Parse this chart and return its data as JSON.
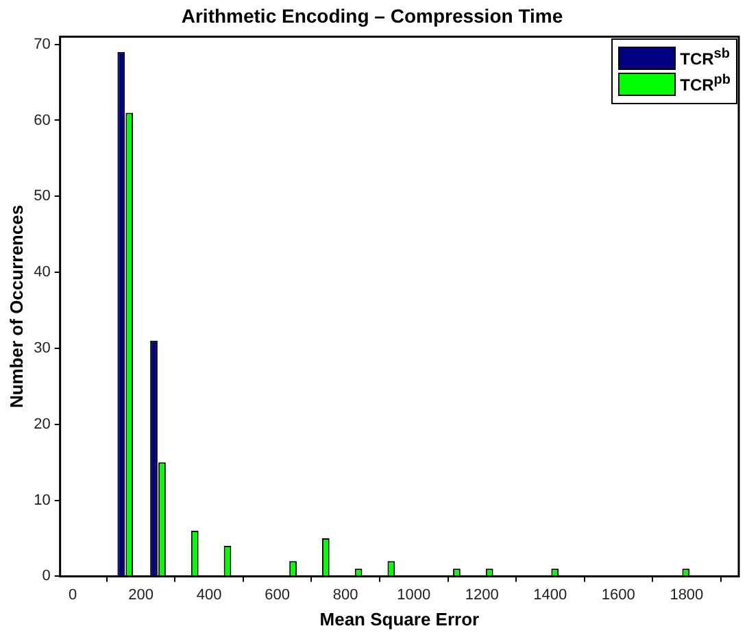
{
  "chart_data": {
    "type": "bar",
    "title": "Arithmetic Encoding – Compression Time",
    "xlabel": "Mean Square Error",
    "ylabel": "Number of Occurrences",
    "x": [
      154,
      250,
      346,
      442,
      538,
      634,
      730,
      826,
      922,
      1018,
      1114,
      1210,
      1306,
      1402,
      1498,
      1594,
      1690,
      1786,
      1882
    ],
    "series": [
      {
        "name": "TCR$^{sb}$",
        "color": "#000080",
        "values": [
          69,
          31,
          0,
          0,
          0,
          0,
          0,
          0,
          0,
          0,
          0,
          0,
          0,
          0,
          0,
          0,
          0,
          0,
          0
        ]
      },
      {
        "name": "TCR$^{pb}$",
        "color": "#00ff00",
        "values": [
          61,
          15,
          6,
          4,
          0,
          2,
          5,
          1,
          2,
          0,
          1,
          1,
          0,
          1,
          0,
          0,
          0,
          1,
          0
        ]
      }
    ],
    "xlim": [
      -37,
      1953
    ],
    "xticks": [
      0,
      200,
      400,
      600,
      800,
      1000,
      1200,
      1400,
      1600,
      1800
    ],
    "ylim": [
      0,
      71
    ],
    "yticks": [
      0,
      10,
      20,
      30,
      40,
      50,
      60,
      70
    ],
    "grid": false,
    "legend": "top right"
  }
}
